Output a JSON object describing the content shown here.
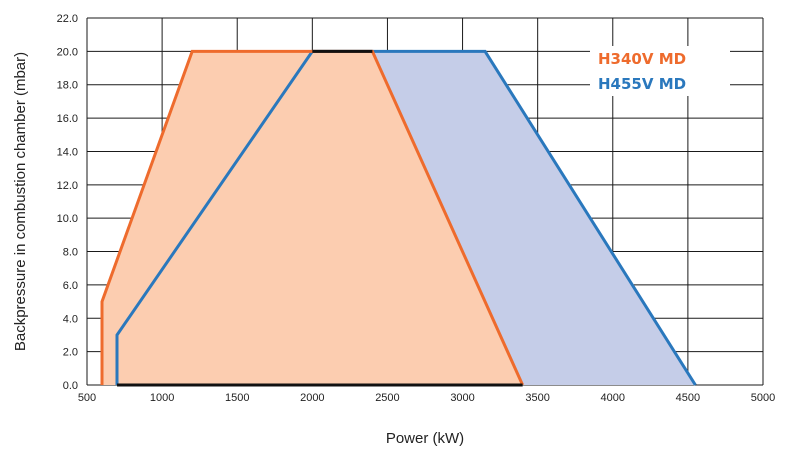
{
  "chart_data": {
    "type": "area",
    "xlabel": "Power (kW)",
    "ylabel": "Backpressure in  combustion chamber (mbar)",
    "xlim": [
      500,
      5000
    ],
    "ylim": [
      0,
      22
    ],
    "x_ticks": [
      500,
      1000,
      1500,
      2000,
      2500,
      3000,
      3500,
      4000,
      4500,
      5000
    ],
    "x_tick_labels": [
      "500",
      "1000",
      "1500",
      "2000",
      "2500",
      "3000",
      "3500",
      "4000",
      "4500",
      "5000"
    ],
    "y_ticks": [
      0,
      2,
      4,
      6,
      8,
      10,
      12,
      14,
      16,
      18,
      20,
      22
    ],
    "y_tick_labels": [
      "0.0",
      "2.0",
      "4.0",
      "6.0",
      "8.0",
      "10.0",
      "12.0",
      "14.0",
      "16.0",
      "18.0",
      "20.0",
      "22.0"
    ],
    "grid": true,
    "legend_position": "top-right",
    "series": [
      {
        "name": "H455V  MD",
        "color": "#2a78bd",
        "fill": "#c5cde8",
        "points": [
          [
            700,
            0
          ],
          [
            700,
            3
          ],
          [
            2000,
            20
          ],
          [
            3150,
            20
          ],
          [
            4550,
            0
          ]
        ]
      },
      {
        "name": "H340V  MD",
        "color": "#ee6b2d",
        "fill": "#fccdb0",
        "points": [
          [
            600,
            0
          ],
          [
            600,
            5
          ],
          [
            1200,
            20
          ],
          [
            2400,
            20
          ],
          [
            3400,
            0
          ]
        ]
      }
    ],
    "legend": [
      {
        "label": "H340V  MD",
        "color": "#ee6b2d"
      },
      {
        "label": "H455V  MD",
        "color": "#2a78bd"
      }
    ]
  }
}
